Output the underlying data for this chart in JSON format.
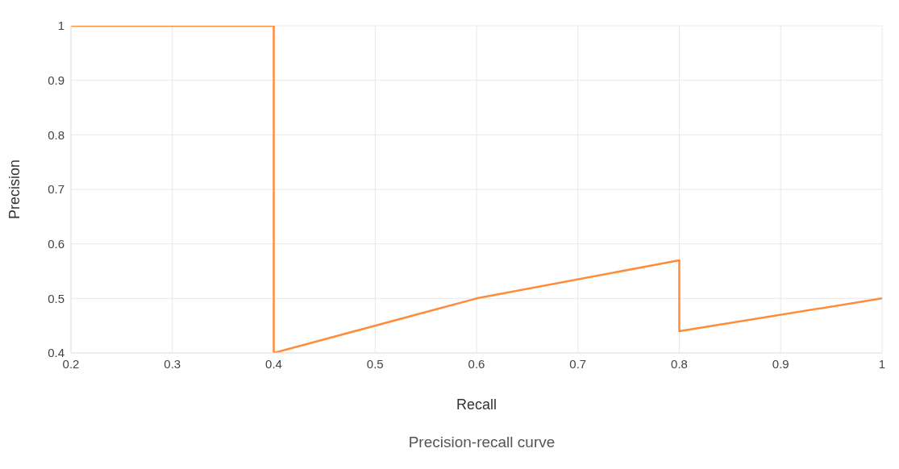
{
  "chart_data": {
    "type": "line",
    "xlabel": "Recall",
    "ylabel": "Precision",
    "annotations": [
      "Precision-recall curve"
    ],
    "x": [
      0.2,
      0.4,
      0.4,
      0.6,
      0.8,
      0.8,
      1
    ],
    "series": [
      {
        "color": "#ff8c3a",
        "values": [
          1,
          1,
          0.4,
          0.5,
          0.57,
          0.44,
          0.5
        ]
      }
    ],
    "xlim": [
      0.2,
      1
    ],
    "xticks": [
      0.2,
      0.3,
      0.4,
      0.5,
      0.6,
      0.7,
      0.8,
      0.9,
      1
    ],
    "ylim": [
      0.4,
      1
    ],
    "yticks": [
      0.4,
      0.5,
      0.6,
      0.7,
      0.8,
      0.9,
      1
    ],
    "grid": true,
    "legend": false,
    "line_style": "solid"
  }
}
